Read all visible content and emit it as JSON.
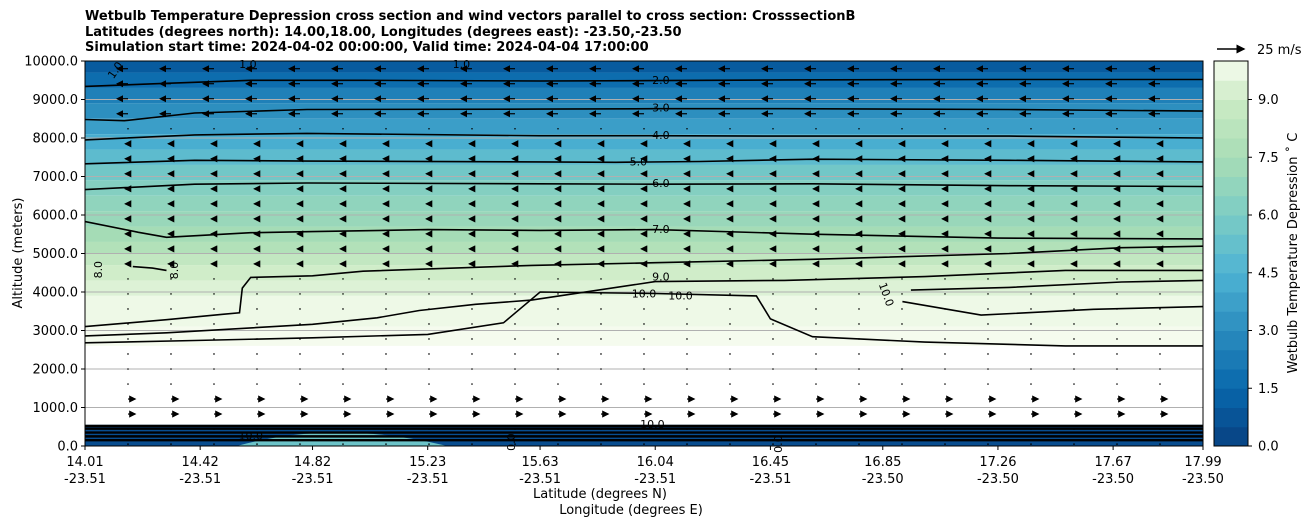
{
  "chart_data": {
    "type": "heatmap",
    "title_lines": [
      "Wetbulb Temperature Depression cross section and wind vectors parallel to cross section: CrosssectionB",
      "Latitudes (degrees north): 14.00,18.00, Longitudes (degrees east): -23.50,-23.50",
      "Simulation start time: 2024-04-02 00:00:00, Valid time: 2024-04-04 17:00:00"
    ],
    "ylabel": "Altitude (meters)",
    "xlabel": "Latitude (degrees N)",
    "xlabel2": "Longitude (degrees E)",
    "ylim": [
      0,
      10000
    ],
    "yticks": [
      "0.0",
      "1000.0",
      "2000.0",
      "3000.0",
      "4000.0",
      "5000.0",
      "6000.0",
      "7000.0",
      "8000.0",
      "9000.0",
      "10000.0"
    ],
    "xticks_lat": [
      "14.01",
      "14.42",
      "14.82",
      "15.23",
      "15.63",
      "16.04",
      "16.45",
      "16.85",
      "17.26",
      "17.67",
      "17.99"
    ],
    "xticks_lon": [
      "-23.51",
      "-23.51",
      "-23.51",
      "-23.51",
      "-23.51",
      "-23.51",
      "-23.51",
      "-23.50",
      "-23.50",
      "-23.50",
      "-23.50"
    ],
    "lat_range": [
      14.01,
      17.99
    ],
    "colorbar": {
      "label": "Wetbulb Temperature Depression ˚ C",
      "range": [
        0,
        10
      ],
      "ticks": [
        "0.0",
        "1.5",
        "3.0",
        "4.5",
        "6.0",
        "7.5",
        "9.0"
      ]
    },
    "wind_legend": "25 m/s",
    "contour_levels": [
      1.0,
      2.0,
      3.0,
      4.0,
      5.0,
      6.0,
      7.0,
      8.0,
      9.0,
      10.0
    ],
    "contour_labels": [
      {
        "text": "1.0",
        "lat": 14.12,
        "alt": 9750,
        "rot": -55
      },
      {
        "text": "1.0",
        "lat": 14.59,
        "alt": 9900,
        "rot": 0
      },
      {
        "text": "1.0",
        "lat": 15.35,
        "alt": 9900,
        "rot": 0
      },
      {
        "text": "2.0",
        "lat": 16.06,
        "alt": 9480,
        "rot": 0
      },
      {
        "text": "3.0",
        "lat": 16.06,
        "alt": 8760,
        "rot": 0
      },
      {
        "text": "4.0",
        "lat": 16.06,
        "alt": 8050,
        "rot": 0
      },
      {
        "text": "5.0",
        "lat": 15.98,
        "alt": 7370,
        "rot": 0
      },
      {
        "text": "6.0",
        "lat": 16.06,
        "alt": 6800,
        "rot": 0
      },
      {
        "text": "7.0",
        "lat": 16.06,
        "alt": 5610,
        "rot": 0
      },
      {
        "text": "8.0",
        "lat": 14.06,
        "alt": 4580,
        "rot": -90
      },
      {
        "text": "8.0",
        "lat": 14.33,
        "alt": 4560,
        "rot": -90
      },
      {
        "text": "9.0",
        "lat": 16.06,
        "alt": 4380,
        "rot": 0
      },
      {
        "text": "10.0",
        "lat": 16.0,
        "alt": 3930,
        "rot": 0
      },
      {
        "text": "10.0",
        "lat": 16.13,
        "alt": 3880,
        "rot": 0
      },
      {
        "text": "10.0",
        "lat": 16.86,
        "alt": 3930,
        "rot": 70
      },
      {
        "text": "10.0",
        "lat": 16.03,
        "alt": 550,
        "rot": 0
      },
      {
        "text": "10.0",
        "lat": 14.6,
        "alt": 250,
        "rot": 0
      },
      {
        "text": "0.0",
        "lat": 15.53,
        "alt": 100,
        "rot": -90
      },
      {
        "text": "0.0",
        "lat": 16.48,
        "alt": 50,
        "rot": -90
      }
    ],
    "series": [
      {
        "name": "contour-2.0",
        "values": [
          [
            14.01,
            9340
          ],
          [
            14.3,
            9420
          ],
          [
            14.6,
            9500
          ],
          [
            15,
            9500
          ],
          [
            15.63,
            9480
          ],
          [
            16.04,
            9490
          ],
          [
            16.5,
            9510
          ],
          [
            17.3,
            9520
          ],
          [
            17.99,
            9520
          ]
        ]
      },
      {
        "name": "contour-3.0",
        "values": [
          [
            14.01,
            8480
          ],
          [
            14.15,
            8450
          ],
          [
            14.4,
            8650
          ],
          [
            14.8,
            8740
          ],
          [
            15.63,
            8750
          ],
          [
            16.04,
            8760
          ],
          [
            16.5,
            8760
          ],
          [
            17.3,
            8740
          ],
          [
            17.99,
            8700
          ]
        ]
      },
      {
        "name": "contour-4.0",
        "values": [
          [
            14.01,
            7950
          ],
          [
            14.4,
            8080
          ],
          [
            14.8,
            8120
          ],
          [
            15.63,
            8060
          ],
          [
            16.04,
            8060
          ],
          [
            16.5,
            8050
          ],
          [
            17.3,
            8050
          ],
          [
            17.99,
            8000
          ]
        ]
      },
      {
        "name": "contour-5.0",
        "values": [
          [
            14.01,
            7330
          ],
          [
            14.4,
            7420
          ],
          [
            14.8,
            7400
          ],
          [
            15.63,
            7380
          ],
          [
            15.9,
            7370
          ],
          [
            16.2,
            7390
          ],
          [
            16.6,
            7450
          ],
          [
            17.3,
            7420
          ],
          [
            17.99,
            7380
          ]
        ]
      },
      {
        "name": "contour-6.0",
        "values": [
          [
            14.01,
            6660
          ],
          [
            14.4,
            6800
          ],
          [
            14.8,
            6830
          ],
          [
            15.63,
            6810
          ],
          [
            16.04,
            6800
          ],
          [
            16.6,
            6810
          ],
          [
            17.3,
            6760
          ],
          [
            17.99,
            6740
          ]
        ]
      },
      {
        "name": "contour-7.0",
        "values": [
          [
            14.01,
            5830
          ],
          [
            14.2,
            5550
          ],
          [
            14.3,
            5420
          ],
          [
            14.6,
            5540
          ],
          [
            14.82,
            5570
          ],
          [
            15.23,
            5620
          ],
          [
            15.63,
            5600
          ],
          [
            16.04,
            5620
          ],
          [
            16.6,
            5500
          ],
          [
            17.26,
            5400
          ],
          [
            17.99,
            5380
          ]
        ]
      },
      {
        "name": "contour-8.0",
        "values": [
          [
            14.01,
            3100
          ],
          [
            14.3,
            3280
          ],
          [
            14.5,
            3420
          ],
          [
            14.56,
            3460
          ],
          [
            14.57,
            4100
          ],
          [
            14.6,
            4380
          ],
          [
            14.82,
            4420
          ],
          [
            15,
            4540
          ],
          [
            15.6,
            4690
          ],
          [
            16.04,
            4760
          ],
          [
            16.6,
            4850
          ],
          [
            17.3,
            5000
          ],
          [
            17.7,
            5150
          ],
          [
            17.99,
            5190
          ]
        ]
      },
      {
        "name": "contour-8.0-b",
        "values": [
          [
            14.18,
            4660
          ],
          [
            14.25,
            4620
          ],
          [
            14.3,
            4560
          ]
        ]
      },
      {
        "name": "contour-9.0",
        "values": [
          [
            14.01,
            2860
          ],
          [
            14.3,
            2940
          ],
          [
            14.82,
            3160
          ],
          [
            15.05,
            3330
          ],
          [
            15.2,
            3520
          ],
          [
            15.4,
            3680
          ],
          [
            15.6,
            3790
          ],
          [
            16.04,
            4270
          ],
          [
            16.5,
            4300
          ],
          [
            17.0,
            4400
          ],
          [
            17.5,
            4560
          ],
          [
            17.99,
            4560
          ]
        ]
      },
      {
        "name": "contour-9.0-b",
        "values": [
          [
            16.95,
            4050
          ],
          [
            17.3,
            4120
          ],
          [
            17.7,
            4260
          ],
          [
            17.99,
            4300
          ]
        ]
      },
      {
        "name": "contour-10.0",
        "values": [
          [
            14.01,
            2680
          ],
          [
            14.4,
            2740
          ],
          [
            14.82,
            2810
          ],
          [
            15.23,
            2900
          ],
          [
            15.5,
            3200
          ],
          [
            15.63,
            4000
          ],
          [
            16.04,
            3960
          ],
          [
            16.4,
            3900
          ],
          [
            16.45,
            3300
          ],
          [
            16.6,
            2840
          ],
          [
            17.0,
            2700
          ],
          [
            17.5,
            2600
          ],
          [
            17.99,
            2600
          ]
        ]
      },
      {
        "name": "contour-10.0-b",
        "values": [
          [
            16.92,
            3750
          ],
          [
            17.2,
            3400
          ],
          [
            17.6,
            3550
          ],
          [
            17.99,
            3620
          ]
        ]
      }
    ],
    "wind_vectors": [
      {
        "alt_range": [
          8500,
          9800
        ],
        "direction": "southward",
        "speed_m_s": 12
      },
      {
        "alt_range": [
          4500,
          8000
        ],
        "direction": "southward",
        "speed_m_s": 3
      },
      {
        "alt_range": [
          500,
          1500
        ],
        "direction": "northward",
        "speed_m_s": 8
      }
    ]
  }
}
